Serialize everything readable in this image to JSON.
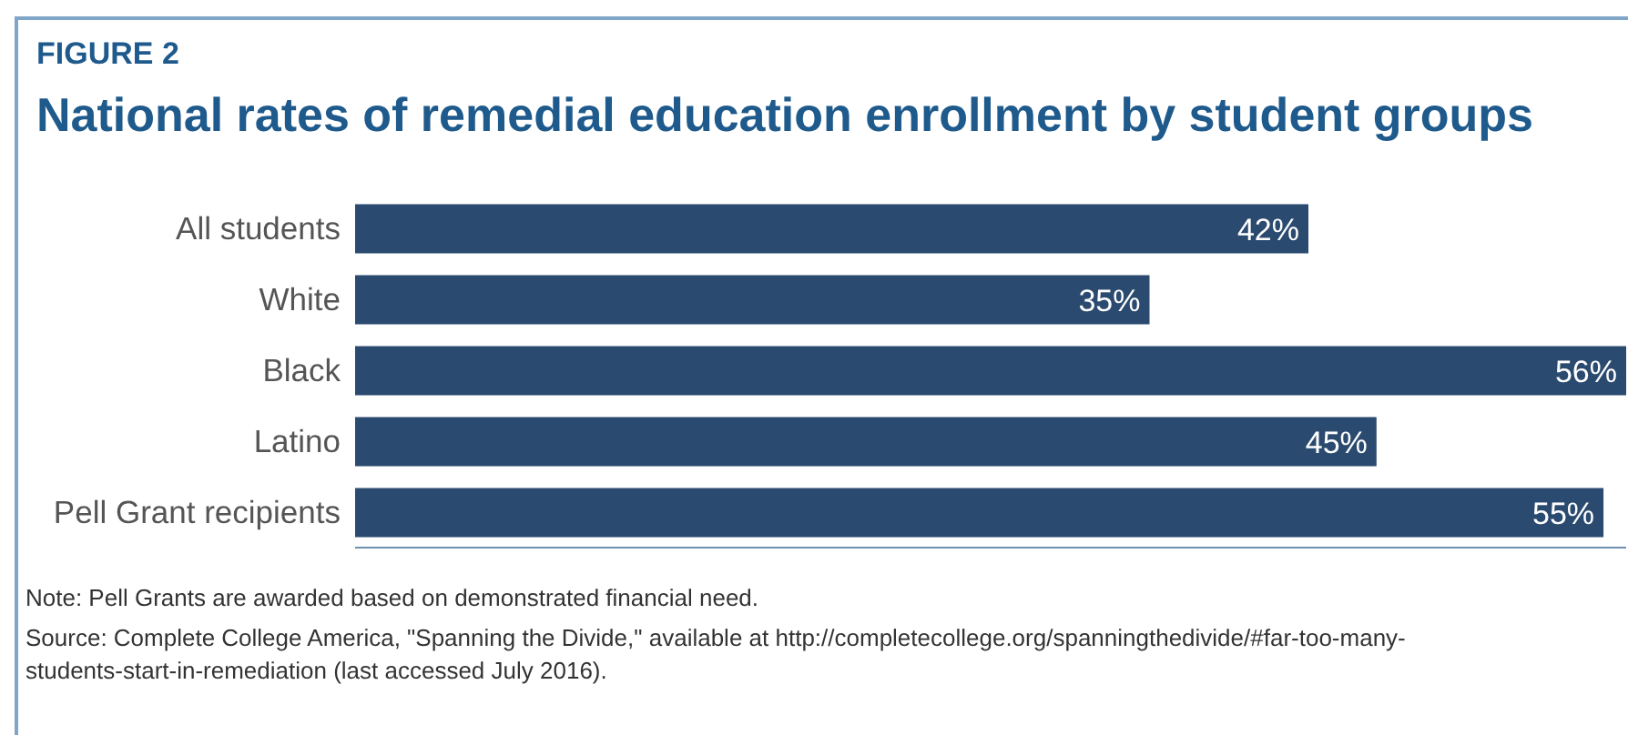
{
  "chart_data": {
    "type": "bar",
    "orientation": "horizontal",
    "subtitle": "FIGURE 2",
    "title": "National rates of remedial education enrollment by student groups",
    "categories": [
      "All students",
      "White",
      "Black",
      "Latino",
      "Pell Grant recipients"
    ],
    "values": [
      42,
      35,
      56,
      45,
      55
    ],
    "value_labels": [
      "42%",
      "35%",
      "56%",
      "45%",
      "55%"
    ],
    "color": "#2b4a6f",
    "tick_labels": "y",
    "grid": false,
    "legend": false,
    "annotations": [
      "Note: Pell Grants are awarded based on demonstrated financial need.",
      "Source: Complete College America, \"Spanning the Divide,\" available at http://completecollege.org/spanningthedivide/#far-too-many-students-start-in-remediation (last accessed July 2016)."
    ]
  }
}
